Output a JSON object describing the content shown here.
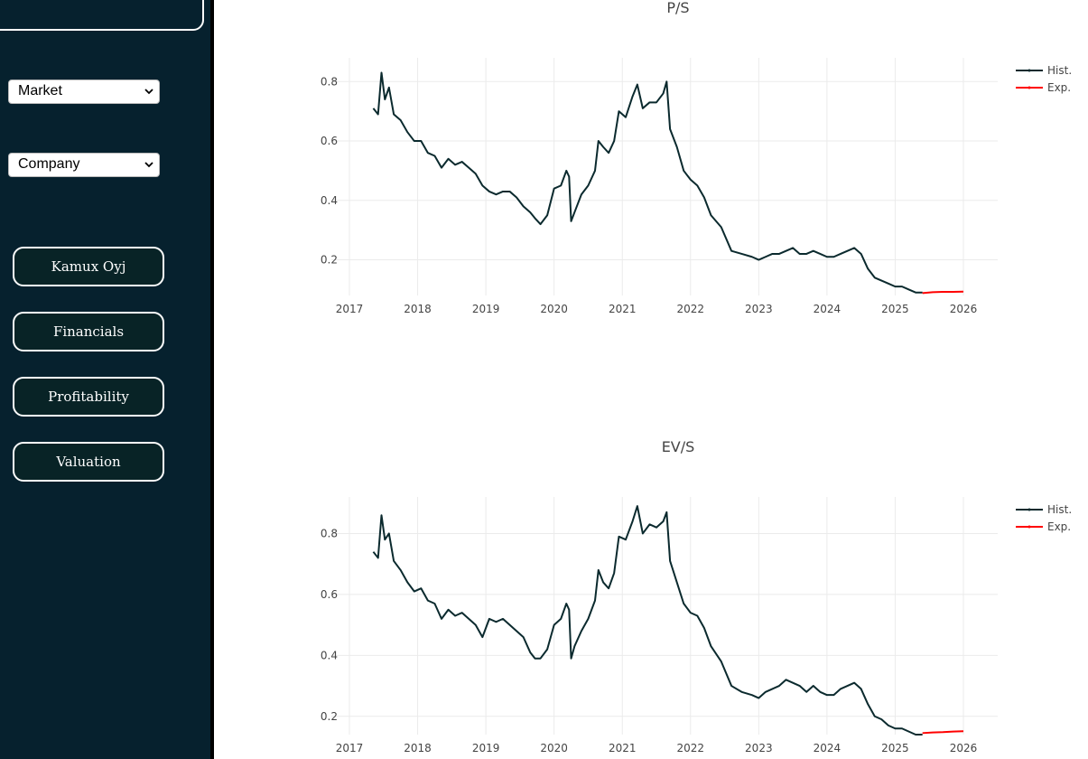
{
  "sidebar": {
    "dropdowns": [
      {
        "selected": "Market"
      },
      {
        "selected": "Company"
      }
    ],
    "buttons": [
      {
        "label": "Kamux Oyj"
      },
      {
        "label": "Financials"
      },
      {
        "label": "Profitability"
      },
      {
        "label": "Valuation"
      }
    ]
  },
  "colors": {
    "sidebar_bg": "#06212e",
    "button_bg": "#082326",
    "hist_line": "#0b2a2e",
    "exp_line": "#ff0000"
  },
  "chart_data": [
    {
      "type": "line",
      "title": "P/S",
      "x_ticks": [
        "2017",
        "2018",
        "2019",
        "2020",
        "2021",
        "2022",
        "2023",
        "2024",
        "2025",
        "2026"
      ],
      "y_ticks": [
        "0.2",
        "0.4",
        "0.6",
        "0.8"
      ],
      "xlim": [
        2017.0,
        2026.0
      ],
      "ylim": [
        0.08,
        0.88
      ],
      "grid": true,
      "legend": "top-right",
      "series": [
        {
          "name": "Hist.",
          "color": "#0b2a2e",
          "x": [
            2017.35,
            2017.42,
            2017.47,
            2017.52,
            2017.58,
            2017.65,
            2017.75,
            2017.85,
            2017.95,
            2018.05,
            2018.15,
            2018.25,
            2018.35,
            2018.45,
            2018.55,
            2018.65,
            2018.75,
            2018.85,
            2018.95,
            2019.05,
            2019.15,
            2019.25,
            2019.35,
            2019.45,
            2019.55,
            2019.65,
            2019.72,
            2019.8,
            2019.9,
            2020.0,
            2020.1,
            2020.18,
            2020.22,
            2020.25,
            2020.3,
            2020.4,
            2020.5,
            2020.6,
            2020.65,
            2020.72,
            2020.8,
            2020.88,
            2020.95,
            2021.05,
            2021.15,
            2021.22,
            2021.3,
            2021.4,
            2021.5,
            2021.6,
            2021.65,
            2021.7,
            2021.8,
            2021.9,
            2022.0,
            2022.1,
            2022.2,
            2022.3,
            2022.45,
            2022.6,
            2022.75,
            2022.9,
            2023.0,
            2023.1,
            2023.2,
            2023.3,
            2023.4,
            2023.5,
            2023.6,
            2023.7,
            2023.8,
            2023.9,
            2024.0,
            2024.1,
            2024.2,
            2024.3,
            2024.4,
            2024.5,
            2024.6,
            2024.7,
            2024.8,
            2024.9,
            2025.0,
            2025.1,
            2025.2,
            2025.3,
            2025.4
          ],
          "y": [
            0.71,
            0.69,
            0.83,
            0.74,
            0.78,
            0.69,
            0.67,
            0.63,
            0.6,
            0.6,
            0.56,
            0.55,
            0.51,
            0.54,
            0.52,
            0.53,
            0.51,
            0.49,
            0.45,
            0.43,
            0.42,
            0.43,
            0.43,
            0.41,
            0.38,
            0.36,
            0.34,
            0.32,
            0.35,
            0.44,
            0.45,
            0.5,
            0.48,
            0.33,
            0.36,
            0.42,
            0.45,
            0.5,
            0.6,
            0.58,
            0.56,
            0.6,
            0.7,
            0.68,
            0.75,
            0.79,
            0.71,
            0.73,
            0.73,
            0.76,
            0.8,
            0.64,
            0.58,
            0.5,
            0.47,
            0.45,
            0.41,
            0.35,
            0.31,
            0.23,
            0.22,
            0.21,
            0.2,
            0.21,
            0.22,
            0.22,
            0.23,
            0.24,
            0.22,
            0.22,
            0.23,
            0.22,
            0.21,
            0.21,
            0.22,
            0.23,
            0.24,
            0.22,
            0.17,
            0.14,
            0.13,
            0.12,
            0.11,
            0.11,
            0.1,
            0.09,
            0.09
          ]
        },
        {
          "name": "Exp.",
          "color": "#ff0000",
          "x": [
            2025.4,
            2025.55,
            2025.7,
            2025.85,
            2026.0
          ],
          "y": [
            0.088,
            0.091,
            0.092,
            0.092,
            0.093
          ]
        }
      ]
    },
    {
      "type": "line",
      "title": "EV/S",
      "x_ticks": [
        "2017",
        "2018",
        "2019",
        "2020",
        "2021",
        "2022",
        "2023",
        "2024",
        "2025",
        "2026"
      ],
      "y_ticks": [
        "0.2",
        "0.4",
        "0.6",
        "0.8"
      ],
      "xlim": [
        2017.0,
        2026.0
      ],
      "ylim": [
        0.14,
        0.92
      ],
      "grid": true,
      "legend": "top-right",
      "series": [
        {
          "name": "Hist.",
          "color": "#0b2a2e",
          "x": [
            2017.35,
            2017.42,
            2017.47,
            2017.52,
            2017.58,
            2017.65,
            2017.75,
            2017.85,
            2017.95,
            2018.05,
            2018.15,
            2018.25,
            2018.35,
            2018.45,
            2018.55,
            2018.65,
            2018.75,
            2018.85,
            2018.95,
            2019.05,
            2019.15,
            2019.25,
            2019.35,
            2019.45,
            2019.55,
            2019.65,
            2019.72,
            2019.8,
            2019.9,
            2020.0,
            2020.1,
            2020.18,
            2020.22,
            2020.25,
            2020.3,
            2020.4,
            2020.5,
            2020.6,
            2020.65,
            2020.72,
            2020.8,
            2020.88,
            2020.95,
            2021.05,
            2021.15,
            2021.22,
            2021.3,
            2021.4,
            2021.5,
            2021.6,
            2021.65,
            2021.7,
            2021.8,
            2021.9,
            2022.0,
            2022.1,
            2022.2,
            2022.3,
            2022.45,
            2022.6,
            2022.75,
            2022.9,
            2023.0,
            2023.1,
            2023.2,
            2023.3,
            2023.4,
            2023.5,
            2023.6,
            2023.7,
            2023.8,
            2023.9,
            2024.0,
            2024.1,
            2024.2,
            2024.3,
            2024.4,
            2024.5,
            2024.6,
            2024.7,
            2024.8,
            2024.9,
            2025.0,
            2025.1,
            2025.2,
            2025.3,
            2025.4
          ],
          "y": [
            0.74,
            0.72,
            0.86,
            0.78,
            0.8,
            0.71,
            0.68,
            0.64,
            0.61,
            0.62,
            0.58,
            0.57,
            0.52,
            0.55,
            0.53,
            0.54,
            0.52,
            0.5,
            0.46,
            0.52,
            0.51,
            0.52,
            0.5,
            0.48,
            0.46,
            0.41,
            0.39,
            0.39,
            0.42,
            0.5,
            0.52,
            0.57,
            0.55,
            0.39,
            0.43,
            0.48,
            0.52,
            0.58,
            0.68,
            0.64,
            0.62,
            0.67,
            0.79,
            0.78,
            0.84,
            0.89,
            0.8,
            0.83,
            0.82,
            0.84,
            0.87,
            0.71,
            0.64,
            0.57,
            0.54,
            0.53,
            0.49,
            0.43,
            0.38,
            0.3,
            0.28,
            0.27,
            0.26,
            0.28,
            0.29,
            0.3,
            0.32,
            0.31,
            0.3,
            0.28,
            0.3,
            0.28,
            0.27,
            0.27,
            0.29,
            0.3,
            0.31,
            0.29,
            0.24,
            0.2,
            0.19,
            0.17,
            0.16,
            0.16,
            0.15,
            0.14,
            0.14
          ]
        },
        {
          "name": "Exp.",
          "color": "#ff0000",
          "x": [
            2025.4,
            2025.55,
            2025.7,
            2025.85,
            2026.0
          ],
          "y": [
            0.145,
            0.147,
            0.148,
            0.15,
            0.151
          ]
        }
      ]
    }
  ]
}
